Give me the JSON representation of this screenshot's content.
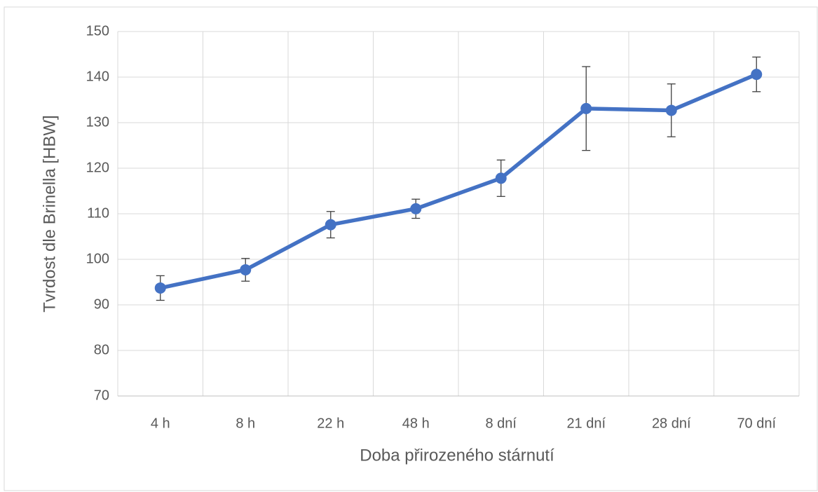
{
  "chart_data": {
    "type": "line",
    "x_label": "Doba přirozeného stárnutí",
    "y_label": "Tvrdost dle Brinella [HBW]",
    "categories": [
      "4 h",
      "8 h",
      "22 h",
      "48 h",
      "8 dní",
      "21 dní",
      "28 dní",
      "70 dní"
    ],
    "series": [
      {
        "color": "#4472c4",
        "values": [
          93.7,
          97.7,
          107.6,
          111.1,
          117.8,
          133.1,
          132.7,
          140.6
        ],
        "errors": [
          2.7,
          2.5,
          2.9,
          2.1,
          4.0,
          9.2,
          5.8,
          3.8
        ]
      }
    ],
    "ylim": [
      70,
      150
    ],
    "yticks": [
      70,
      80,
      90,
      100,
      110,
      120,
      130,
      140,
      150
    ],
    "grid": true
  }
}
